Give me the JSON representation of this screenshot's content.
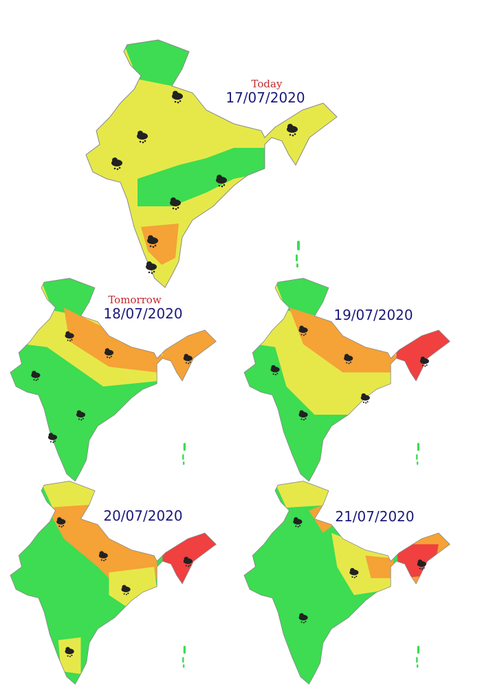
{
  "maps": [
    {
      "label": "Today",
      "date": "17/07/2020"
    },
    {
      "label": "Tomorrow",
      "date": "18/07/2020"
    },
    {
      "date": "19/07/2020"
    },
    {
      "date": "20/07/2020"
    },
    {
      "date": "21/07/2020"
    }
  ]
}
